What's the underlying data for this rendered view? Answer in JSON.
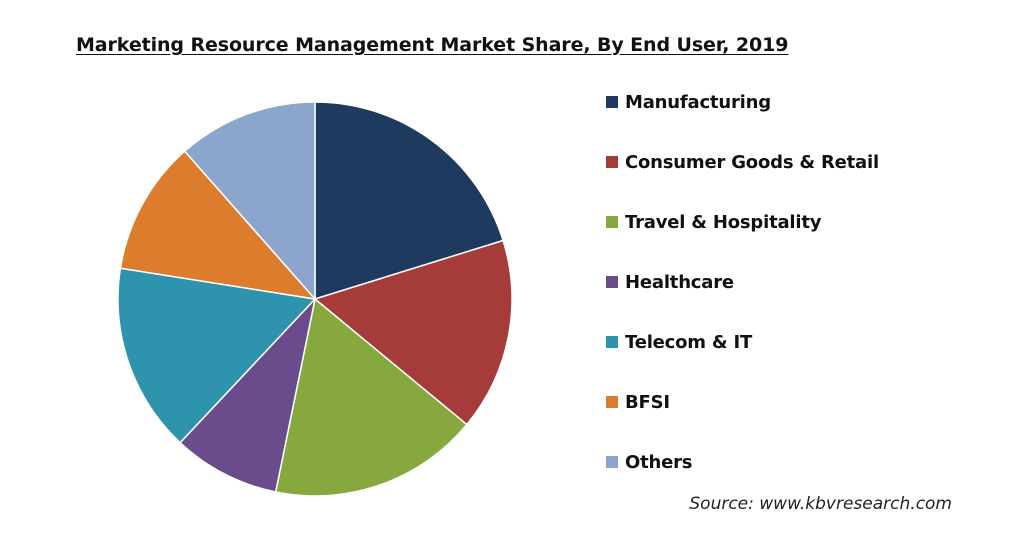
{
  "chart_data": {
    "type": "pie",
    "title": "Marketing Resource Management Market Share, By End User, 2019",
    "legend_position": "right",
    "slices": [
      {
        "label": "Manufacturing",
        "value": 20.2,
        "color": "#1f3a5f"
      },
      {
        "label": "Consumer Goods & Retail",
        "value": 15.8,
        "color": "#a63c3a"
      },
      {
        "label": "Travel & Hospitality",
        "value": 17.2,
        "color": "#86a83f"
      },
      {
        "label": "Healthcare",
        "value": 8.8,
        "color": "#6a4c8c"
      },
      {
        "label": "Telecom & IT",
        "value": 15.5,
        "color": "#2e93ad"
      },
      {
        "label": "BFSI",
        "value": 11.0,
        "color": "#db7d2c"
      },
      {
        "label": "Others",
        "value": 11.5,
        "color": "#8ba5cc"
      }
    ]
  },
  "source": "Source: www.kbvresearch.com"
}
